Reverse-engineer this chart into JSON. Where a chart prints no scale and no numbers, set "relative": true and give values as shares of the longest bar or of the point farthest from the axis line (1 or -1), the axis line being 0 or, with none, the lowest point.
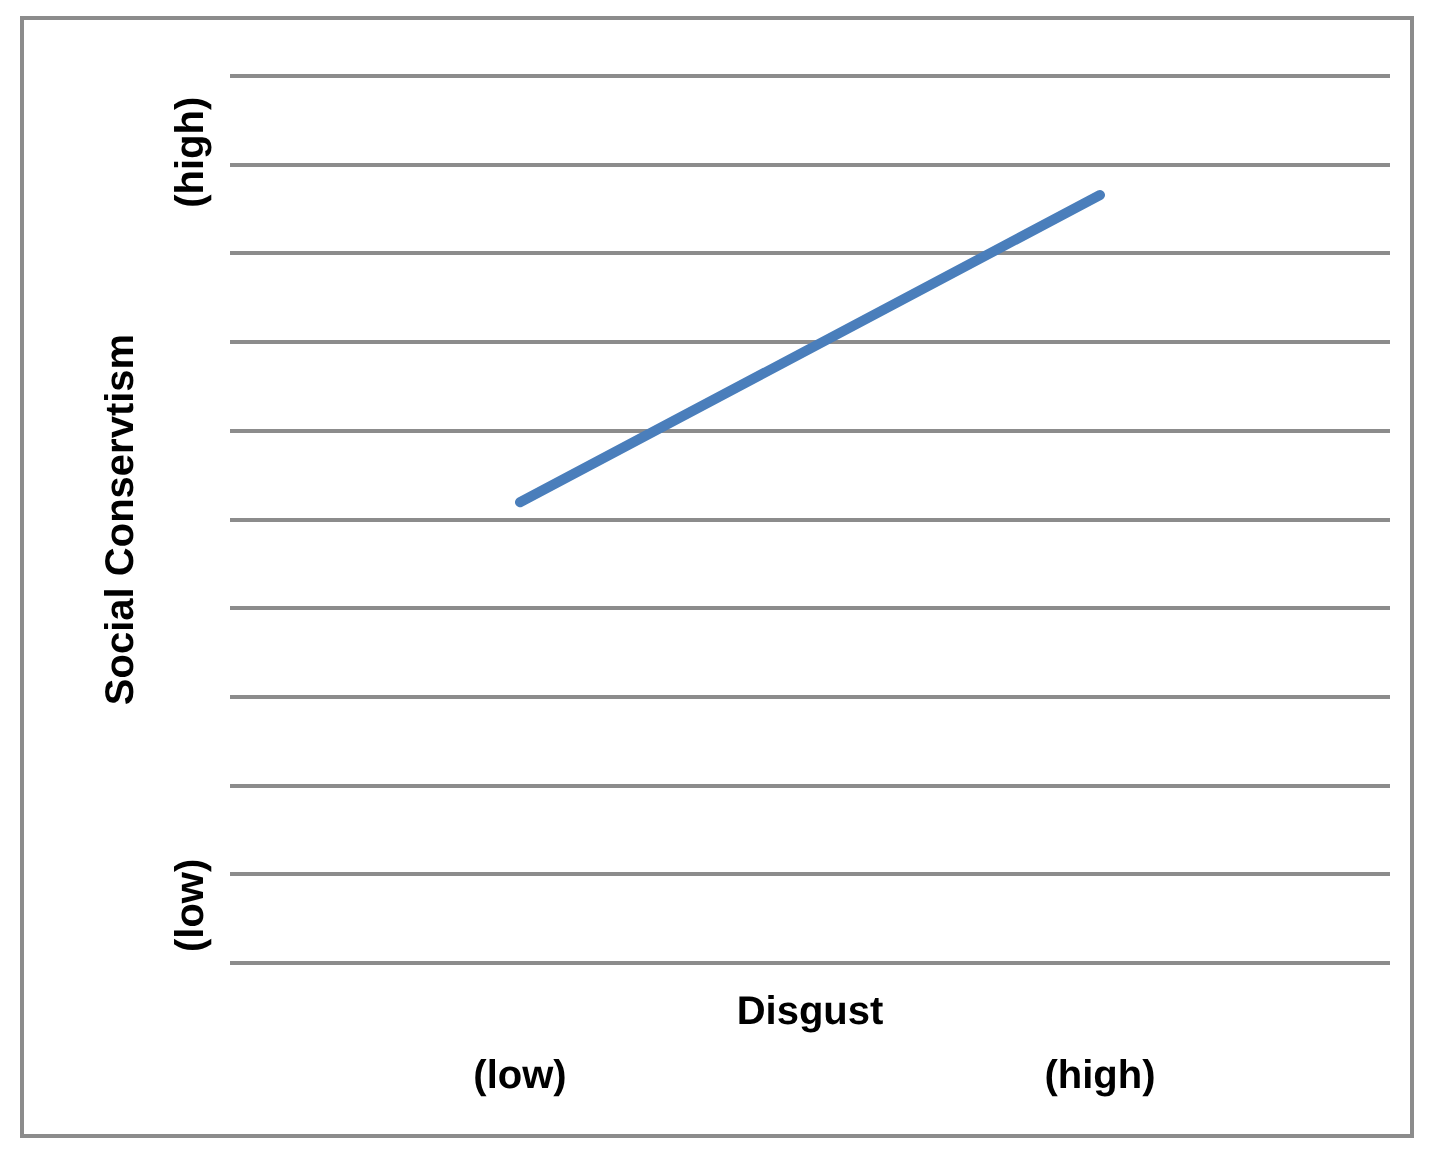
{
  "chart_data": {
    "type": "line",
    "xlabel": "Disgust",
    "ylabel": "Social Conservtism",
    "annotations": [
      "(high)",
      "(low)"
    ],
    "categories": [
      "(low)",
      "(high)"
    ],
    "values": [
      0.6,
      1
    ],
    "color": "#4a7ebb",
    "relative": true,
    "grid": "y"
  }
}
